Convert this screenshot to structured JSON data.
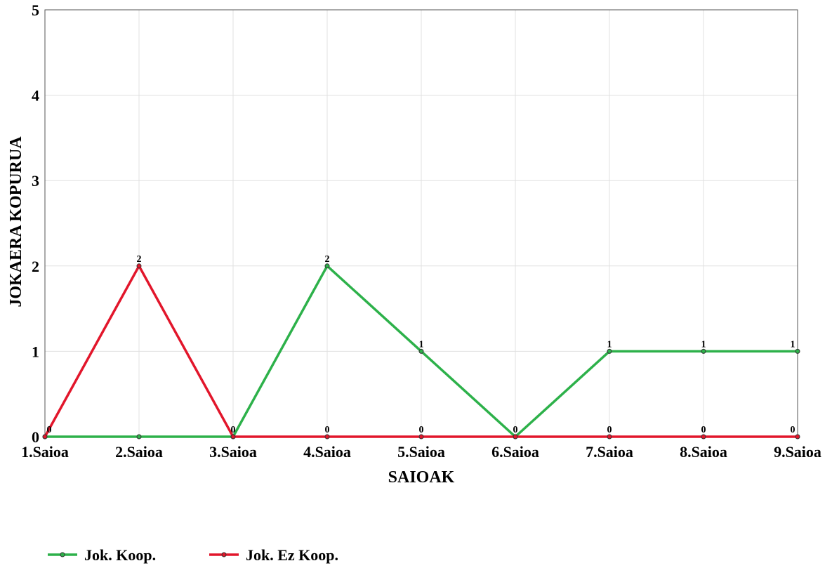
{
  "chart_data": {
    "type": "line",
    "title": "",
    "xlabel": "SAIOAK",
    "ylabel": "JOKAERA KOPURUA",
    "categories": [
      "1.Saioa",
      "2.Saioa",
      "3.Saioa",
      "4.Saioa",
      "5.Saioa",
      "6.Saioa",
      "7.Saioa",
      "8.Saioa",
      "9.Saioa"
    ],
    "ylim": [
      0,
      5
    ],
    "yticks": [
      "0",
      "1",
      "2",
      "3",
      "4",
      "5"
    ],
    "grid": true,
    "legend_position": "bottom-left",
    "series": [
      {
        "name": "Jok. Koop.",
        "color": "#2db14a",
        "values": [
          0,
          0,
          0,
          2,
          1,
          0,
          1,
          1,
          1
        ],
        "labels": [
          "",
          "",
          "",
          "2",
          "1",
          "",
          "1",
          "1",
          "1"
        ]
      },
      {
        "name": "Jok. Ez Koop.",
        "color": "#e2162b",
        "values": [
          0,
          2,
          0,
          0,
          0,
          0,
          0,
          0,
          0
        ],
        "labels": [
          "0",
          "2",
          "0",
          "0",
          "0",
          "0",
          "0",
          "0",
          "0"
        ]
      }
    ]
  }
}
